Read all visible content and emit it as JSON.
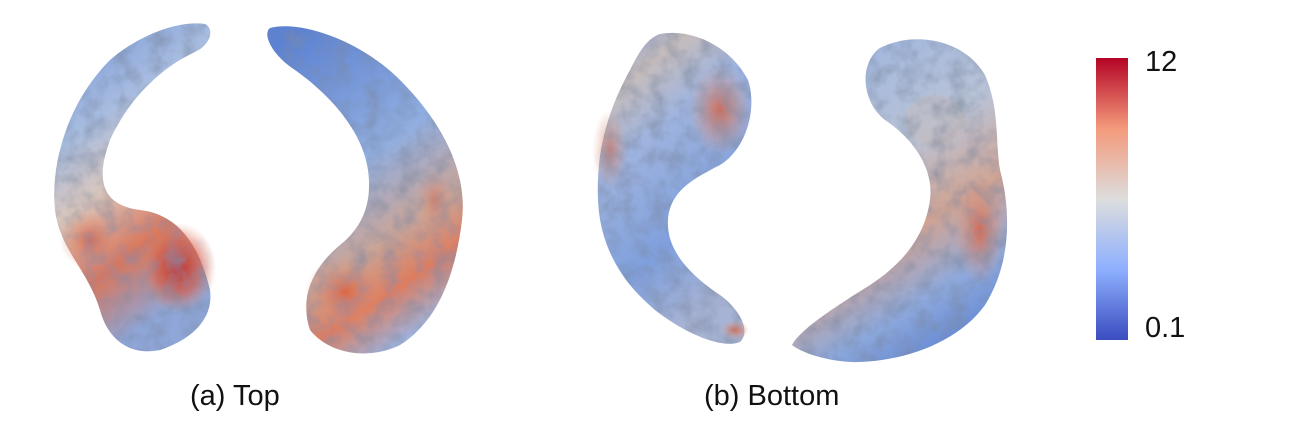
{
  "panels": [
    {
      "caption": "(a) Top"
    },
    {
      "caption": "(b) Bottom"
    }
  ],
  "colorbar": {
    "max_label": "12",
    "min_label": "0.1",
    "colors": [
      "#3b4cc0",
      "#8db0fe",
      "#dddddd",
      "#f49a7b",
      "#b40426"
    ]
  }
}
